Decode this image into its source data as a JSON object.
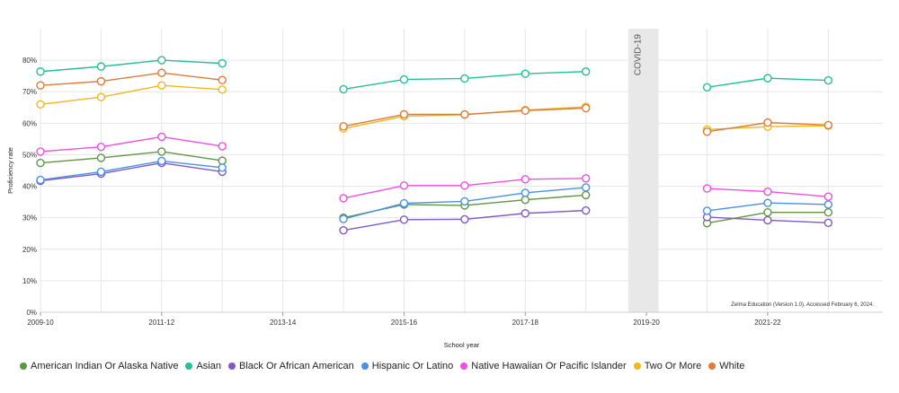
{
  "chart_data": {
    "type": "line",
    "title": "",
    "xlabel": "School year",
    "ylabel": "Proficiency rate",
    "ylim": [
      0,
      0.9
    ],
    "y_ticks": [
      0,
      0.1,
      0.2,
      0.3,
      0.4,
      0.5,
      0.6,
      0.7,
      0.8
    ],
    "y_tick_labels": [
      "0%",
      "10%",
      "20%",
      "30%",
      "40%",
      "50%",
      "60%",
      "70%",
      "80%"
    ],
    "x_ticks": [
      2009,
      2011,
      2013,
      2015,
      2017,
      2019,
      2021
    ],
    "x_tick_labels": [
      "2009-10",
      "2011-12",
      "2013-14",
      "2015-16",
      "2017-18",
      "2019-20",
      "2021-22"
    ],
    "xlim": [
      2009,
      2022.9
    ],
    "grid": true,
    "legend_position": "bottom",
    "annotation": "COVID-19",
    "covid_band": [
      2018.7,
      2019.2
    ],
    "source_note": "Zelma Education (Version 1.0). Accessed February 6, 2024.",
    "x": [
      2009,
      2010,
      2011,
      2012,
      2014,
      2015,
      2016,
      2017,
      2018,
      2020,
      2021,
      2022
    ],
    "series": [
      {
        "name": "American Indian Or Alaska Native",
        "color": "#5f9645",
        "values": [
          0.474,
          0.49,
          0.51,
          0.481,
          0.3,
          0.342,
          0.339,
          0.357,
          0.372,
          0.283,
          0.317,
          0.317
        ]
      },
      {
        "name": "Asian",
        "color": "#24c192",
        "values": [
          0.764,
          0.78,
          0.8,
          0.79,
          0.708,
          0.739,
          0.742,
          0.757,
          0.764,
          0.714,
          0.743,
          0.736
        ]
      },
      {
        "name": "Black Or African American",
        "color": "#8058c8",
        "values": [
          0.417,
          0.44,
          0.474,
          0.446,
          0.26,
          0.294,
          0.295,
          0.314,
          0.323,
          0.302,
          0.292,
          0.284
        ]
      },
      {
        "name": "Hispanic Or Latino",
        "color": "#4a90e2",
        "values": [
          0.42,
          0.446,
          0.48,
          0.459,
          0.296,
          0.346,
          0.352,
          0.379,
          0.396,
          0.322,
          0.347,
          0.342
        ]
      },
      {
        "name": "Native Hawaiian Or Pacific Islander",
        "color": "#f04fe0",
        "values": [
          0.51,
          0.525,
          0.557,
          0.527,
          0.362,
          0.402,
          0.402,
          0.422,
          0.425,
          0.393,
          0.383,
          0.367
        ]
      },
      {
        "name": "Two Or More",
        "color": "#f0b81e",
        "values": [
          0.66,
          0.683,
          0.72,
          0.707,
          0.583,
          0.622,
          0.627,
          0.642,
          0.652,
          0.58,
          0.589,
          0.592
        ]
      },
      {
        "name": "White",
        "color": "#e07b39",
        "values": [
          0.72,
          0.733,
          0.76,
          0.737,
          0.59,
          0.628,
          0.628,
          0.64,
          0.648,
          0.573,
          0.602,
          0.594
        ]
      }
    ]
  }
}
